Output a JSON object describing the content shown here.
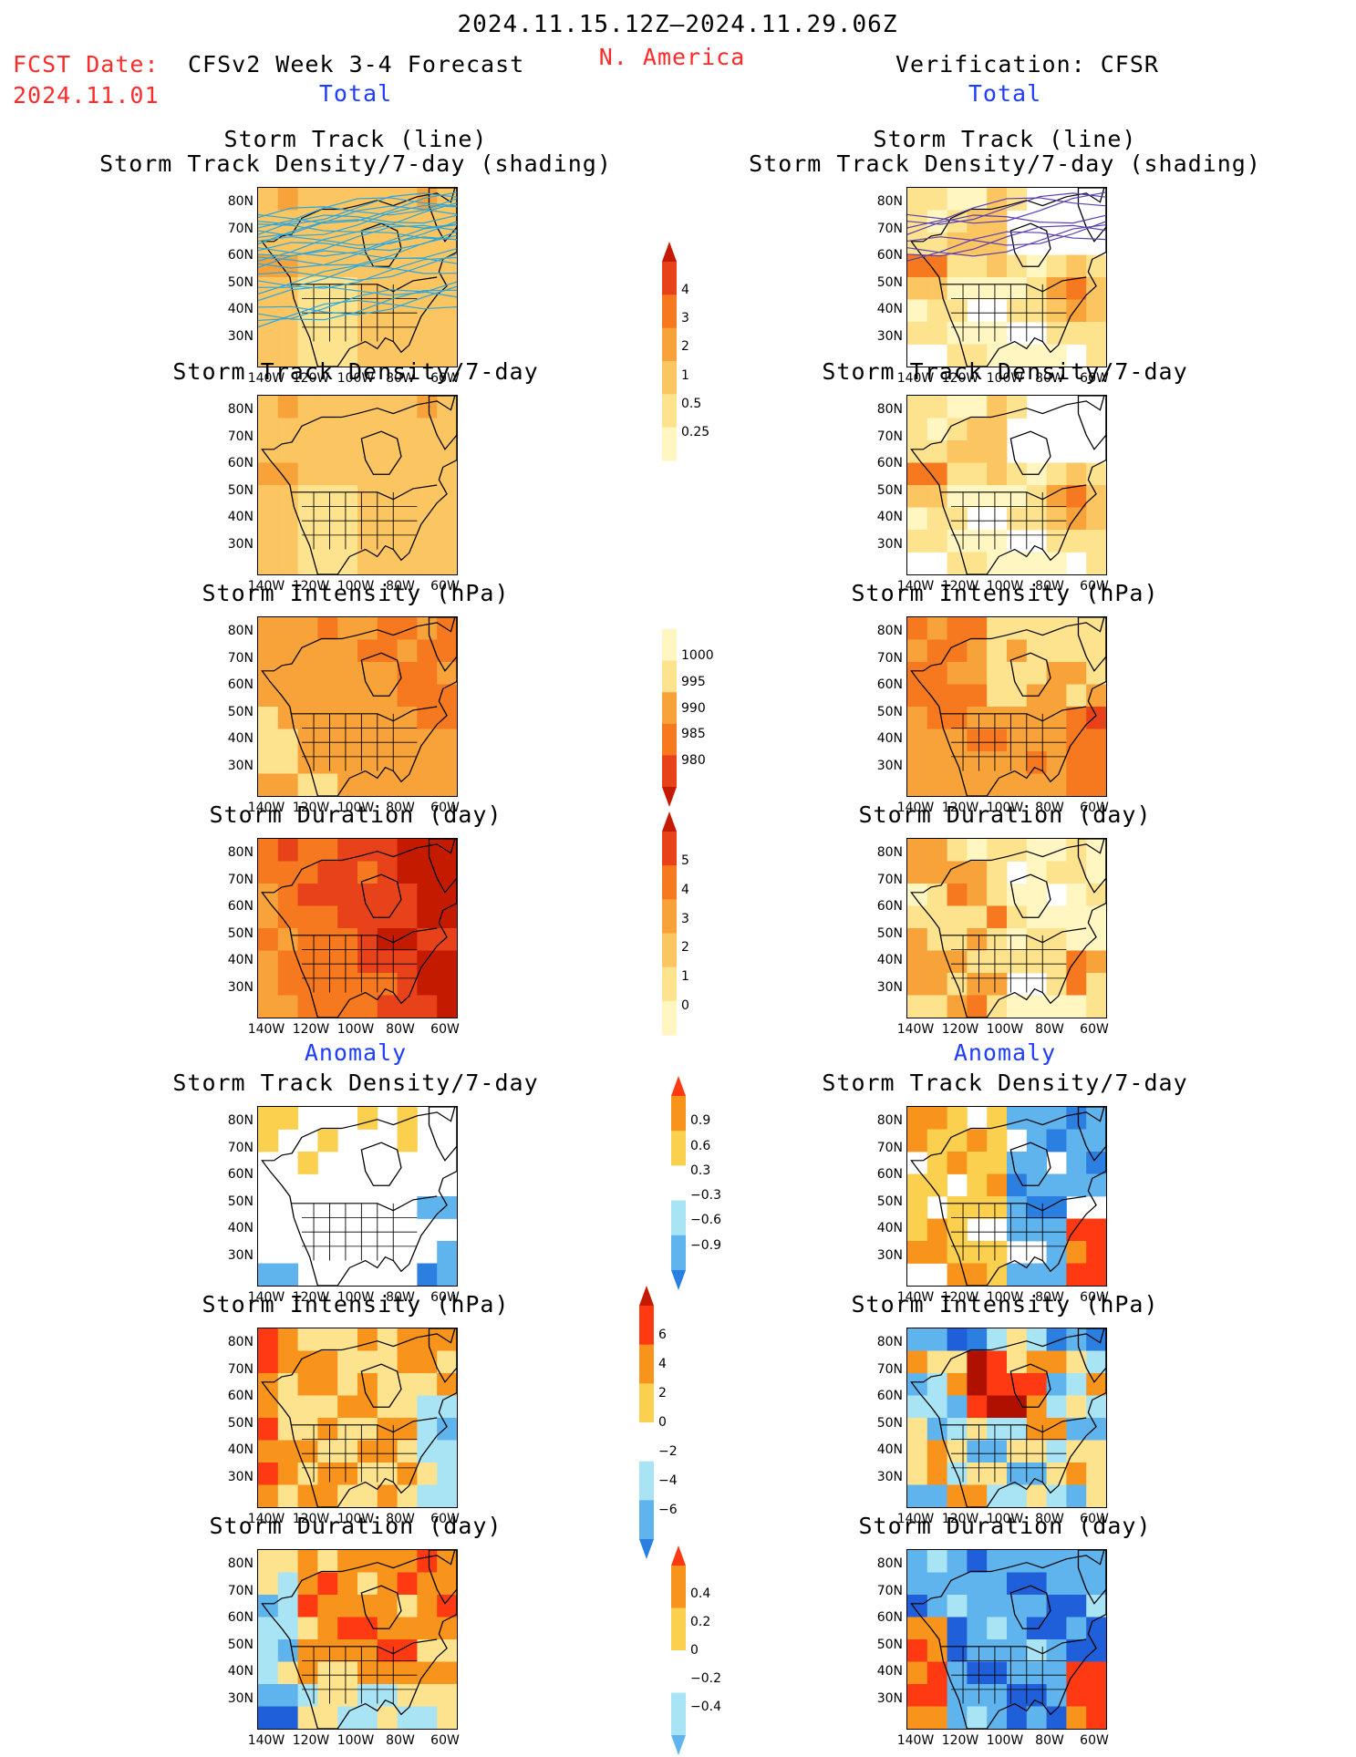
{
  "header": {
    "period": "2024.11.15.12Z–2024.11.29.06Z",
    "fcst_label": "FCST Date:",
    "fcst_date": "2024.11.01",
    "model": "CFSv2 Week 3-4 Forecast",
    "region": "N. America",
    "verification": "Verification: CFSR",
    "total_left": "Total",
    "total_right": "Total",
    "anomaly_left": "Anomaly",
    "anomaly_right": "Anomaly"
  },
  "axes": {
    "lat_labels": [
      "80N",
      "70N",
      "60N",
      "50N",
      "40N",
      "30N"
    ],
    "lon_labels": [
      "140W",
      "120W",
      "100W",
      "80W",
      "60W"
    ]
  },
  "panels": [
    {
      "id": "fc-track",
      "title": [
        "Storm Track (line)",
        "Storm Track Density/7-day (shading)"
      ],
      "field": "density",
      "tracks": true,
      "src": "fc"
    },
    {
      "id": "vf-track",
      "title": [
        "Storm Track (line)",
        "Storm Track Density/7-day (shading)"
      ],
      "field": "density",
      "tracks": true,
      "src": "vf"
    },
    {
      "id": "fc-density",
      "title": [
        "Storm Track Density/7-day"
      ],
      "field": "density",
      "src": "fc"
    },
    {
      "id": "vf-density",
      "title": [
        "Storm Track Density/7-day"
      ],
      "field": "density",
      "src": "vf"
    },
    {
      "id": "fc-intensity",
      "title": [
        "Storm Intensity (hPa)"
      ],
      "field": "intensity",
      "src": "fc"
    },
    {
      "id": "vf-intensity",
      "title": [
        "Storm Intensity (hPa)"
      ],
      "field": "intensity",
      "src": "vf"
    },
    {
      "id": "fc-duration",
      "title": [
        "Storm Duration (day)"
      ],
      "field": "duration",
      "src": "fc"
    },
    {
      "id": "vf-duration",
      "title": [
        "Storm Duration (day)"
      ],
      "field": "duration",
      "src": "vf"
    },
    {
      "id": "fc-density-anom",
      "title": [
        "Storm Track Density/7-day"
      ],
      "field": "anom_density",
      "src": "fc"
    },
    {
      "id": "vf-density-anom",
      "title": [
        "Storm Track Density/7-day"
      ],
      "field": "anom_density",
      "src": "vf"
    },
    {
      "id": "fc-intensity-anom",
      "title": [
        "Storm Intensity (hPa)"
      ],
      "field": "anom_intensity",
      "src": "fc"
    },
    {
      "id": "vf-intensity-anom",
      "title": [
        "Storm Intensity (hPa)"
      ],
      "field": "anom_intensity",
      "src": "vf"
    },
    {
      "id": "fc-duration-anom",
      "title": [
        "Storm Duration (day)"
      ],
      "field": "anom_duration",
      "src": "fc"
    },
    {
      "id": "vf-duration-anom",
      "title": [
        "Storm Duration (day)"
      ],
      "field": "anom_duration",
      "src": "vf"
    }
  ],
  "colorbars": [
    {
      "id": "cb-density",
      "labels": [
        "4",
        "3",
        "2",
        "1",
        "0.5",
        "0.25"
      ],
      "colors": [
        "#c41a00",
        "#e8421a",
        "#f6781f",
        "#f8a23a",
        "#fbc561",
        "#fde38d",
        "#fff6c2"
      ],
      "tri_top": true,
      "tri_bottom": false
    },
    {
      "id": "cb-intensity",
      "labels": [
        "1000",
        "995",
        "990",
        "985",
        "980"
      ],
      "colors": [
        "#fff6c2",
        "#fde38d",
        "#f8a23a",
        "#f6781f",
        "#e8421a",
        "#c41a00"
      ],
      "tri_top": false,
      "tri_bottom": true
    },
    {
      "id": "cb-duration",
      "labels": [
        "5",
        "4",
        "3",
        "2",
        "1",
        "0"
      ],
      "colors": [
        "#c41a00",
        "#e8421a",
        "#f6781f",
        "#f8a23a",
        "#fbc561",
        "#fde38d",
        "#fff6c2"
      ],
      "tri_top": true,
      "tri_bottom": false
    },
    {
      "id": "cb-anom-density",
      "labels": [
        "0.9",
        "0.6",
        "0.3",
        "−0.3",
        "−0.6",
        "−0.9"
      ],
      "colors": [
        "#ff3a12",
        "#f8941c",
        "#fcd04f",
        "#ffffff",
        "#a9e4f5",
        "#5fb4ee",
        "#2a7fe0"
      ],
      "tri_top": true,
      "tri_bottom": true
    },
    {
      "id": "cb-anom-intensity",
      "labels": [
        "6",
        "4",
        "2",
        "0",
        "−2",
        "−4",
        "−6"
      ],
      "colors": [
        "#c41a00",
        "#ff3a12",
        "#f8941c",
        "#fcd04f",
        "#ffffff",
        "#a9e4f5",
        "#5fb4ee",
        "#2a7fe0"
      ],
      "tri_top": true,
      "tri_bottom": true
    },
    {
      "id": "cb-anom-duration",
      "labels": [
        "0.4",
        "0.2",
        "0",
        "−0.2",
        "−0.4"
      ],
      "colors": [
        "#ff3a12",
        "#f8941c",
        "#fcd04f",
        "#ffffff",
        "#a9e4f5",
        "#5fb4ee"
      ],
      "tri_top": true,
      "tri_bottom": true
    }
  ]
}
